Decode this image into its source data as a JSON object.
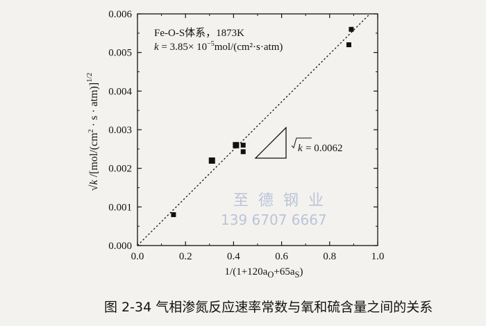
{
  "chart_data": {
    "type": "scatter",
    "title": "",
    "xlabel_html": "1/(1+120a<sub>O</sub>+65a<sub>S</sub>)",
    "ylabel_text": "√k /[mol/(cm²·s·atm)]^1/2",
    "xlim": [
      0.0,
      1.0
    ],
    "ylim": [
      0.0,
      0.006
    ],
    "x_ticks": [
      "0.0",
      "0.2",
      "0.4",
      "0.6",
      "0.8",
      "1.0"
    ],
    "y_ticks": [
      "0.000",
      "0.001",
      "0.002",
      "0.003",
      "0.004",
      "0.005",
      "0.006"
    ],
    "points": [
      {
        "x": 0.15,
        "y": 0.0008
      },
      {
        "x": 0.31,
        "y": 0.0022
      },
      {
        "x": 0.41,
        "y": 0.0026
      },
      {
        "x": 0.44,
        "y": 0.0026
      },
      {
        "x": 0.44,
        "y": 0.00243
      },
      {
        "x": 0.88,
        "y": 0.0052
      },
      {
        "x": 0.89,
        "y": 0.0056
      }
    ],
    "fit_line": {
      "slope": 0.0062,
      "intercept": 0.0,
      "style": "dotted"
    },
    "annotation_system": "Fe-O-S体系，1873K",
    "annotation_k_prefix": "k",
    "annotation_k_value": " = 3.85× 10",
    "annotation_k_exp": "−5",
    "annotation_k_unit": "mol/(cm²·s·atm)",
    "slope_label_value": " = 0.0062",
    "grid": false
  },
  "caption": "图 2-34    气相渗氮反应速率常数与氧和硫含量之间的关系",
  "watermark": {
    "line1": "至德钢业",
    "line2": "139 6707 6667"
  }
}
